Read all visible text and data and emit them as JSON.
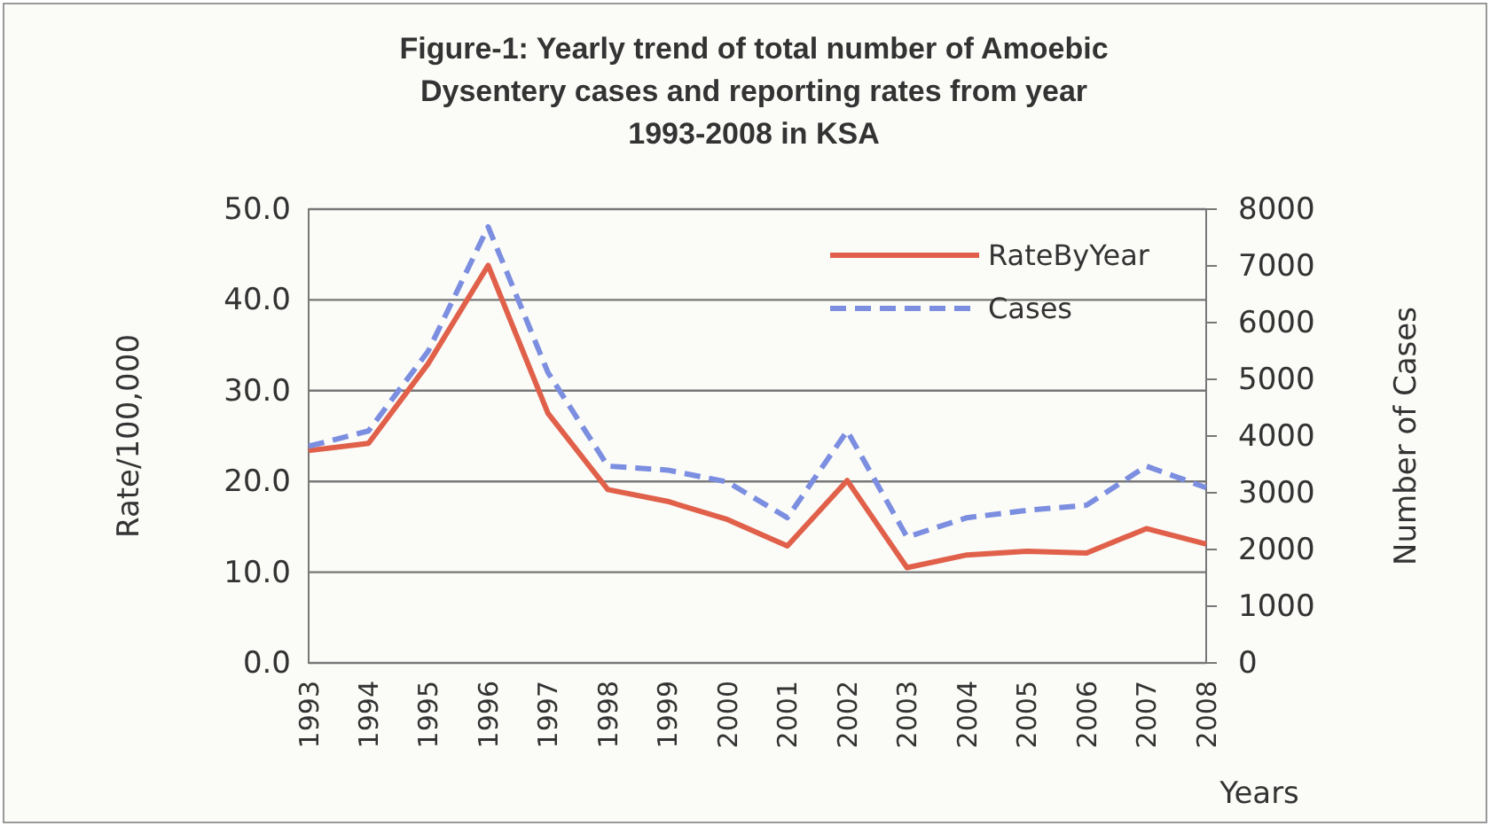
{
  "chart_data": {
    "type": "line",
    "title": "Figure-1: Yearly trend of total number of Amoebic Dysentery cases and reporting rates  from year 1993-2008 in KSA",
    "categories": [
      "1993",
      "1994",
      "1995",
      "1996",
      "1997",
      "1998",
      "1999",
      "2000",
      "2001",
      "2002",
      "2003",
      "2004",
      "2005",
      "2006",
      "2007",
      "2008"
    ],
    "series": [
      {
        "name": "RateByYear",
        "color": "#e0604a",
        "line_style": "solid",
        "values": [
          23.4,
          24.2,
          33.0,
          43.8,
          27.5,
          19.1,
          17.8,
          15.8,
          12.9,
          20.1,
          10.5,
          11.9,
          12.3,
          12.1,
          14.8,
          13.1
        ]
      },
      {
        "name": "Cases",
        "color": "#7b8ee0",
        "line_style": "dashed",
        "axis": "y2",
        "values": [
          3820,
          4090,
          5500,
          7690,
          5120,
          3470,
          3400,
          3190,
          2560,
          4090,
          2220,
          2560,
          2690,
          2780,
          3470,
          3090
        ]
      }
    ],
    "ylabel": "Rate/100,000",
    "y2label": "Number of Cases",
    "xlabel": "Years",
    "ylim": [
      0,
      50
    ],
    "yticks": [
      {
        "value": 0,
        "label": "0.0"
      },
      {
        "value": 10,
        "label": "10.0"
      },
      {
        "value": 20,
        "label": "20.0"
      },
      {
        "value": 30,
        "label": "30.0"
      },
      {
        "value": 40,
        "label": "40.0"
      },
      {
        "value": 50,
        "label": "50.0"
      }
    ],
    "y2lim": [
      0,
      8000
    ],
    "y2ticks": [
      0,
      1000,
      2000,
      3000,
      4000,
      5000,
      6000,
      7000,
      8000
    ],
    "grid": "y",
    "legend": "top right",
    "marker": "none"
  }
}
